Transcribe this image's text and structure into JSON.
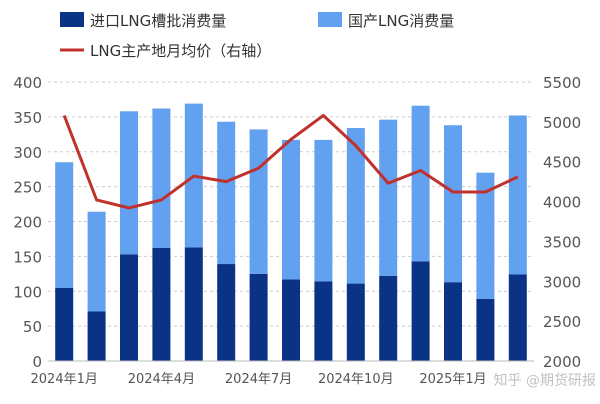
{
  "chart_data": {
    "type": "bar",
    "stacked": true,
    "categories": [
      "2024年1月",
      "2024年2月",
      "2024年3月",
      "2024年4月",
      "2024年5月",
      "2024年6月",
      "2024年7月",
      "2024年8月",
      "2024年9月",
      "2024年10月",
      "2024年11月",
      "2024年12月",
      "2025年1月",
      "2025年2月",
      "2025年3月"
    ],
    "x_tick_labels": [
      "2024年1月",
      "2024年4月",
      "2024年7月",
      "2024年10月",
      "2025年1月"
    ],
    "series": [
      {
        "name": "进口LNG槽批消费量",
        "type": "bar",
        "axis": "left",
        "color": "#0a3285",
        "values": [
          105,
          71,
          153,
          162,
          163,
          139,
          125,
          117,
          114,
          111,
          122,
          143,
          113,
          89,
          124
        ]
      },
      {
        "name": "国产LNG消费量",
        "type": "bar",
        "axis": "left",
        "color": "#62a0f0",
        "values": [
          180,
          143,
          205,
          200,
          206,
          204,
          207,
          200,
          203,
          223,
          224,
          223,
          225,
          181,
          228
        ]
      },
      {
        "name": "LNG主产地月均价（右轴）",
        "type": "line",
        "axis": "right",
        "color": "#c0312b",
        "values": [
          5080,
          4020,
          3920,
          4020,
          4320,
          4250,
          4420,
          4780,
          5080,
          4700,
          4230,
          4390,
          4120,
          4120,
          4310
        ]
      }
    ],
    "y_left": {
      "range": [
        0,
        400
      ],
      "ticks": [
        0,
        50,
        100,
        150,
        200,
        250,
        300,
        350,
        400
      ]
    },
    "y_right": {
      "range": [
        2000,
        5500
      ],
      "ticks": [
        2000,
        2500,
        3000,
        3500,
        4000,
        4500,
        5000,
        5500
      ]
    },
    "grid": true,
    "legend_position": "top"
  },
  "watermark": "知乎 @期货研报"
}
